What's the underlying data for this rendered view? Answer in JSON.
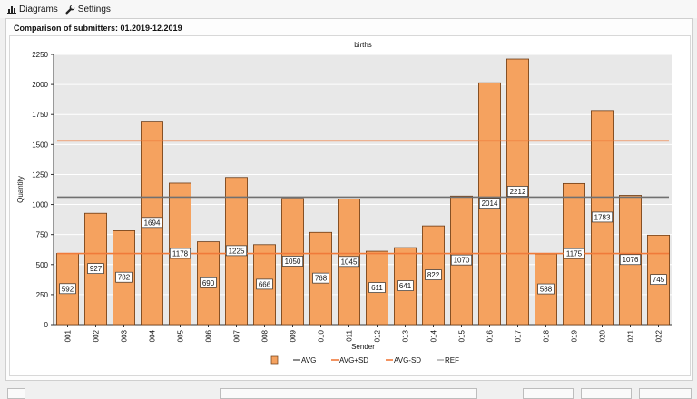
{
  "toolbar": {
    "diagrams_label": "Diagrams",
    "settings_label": "Settings"
  },
  "panel": {
    "title": "Comparison of submitters: 01.2019-12.2019"
  },
  "chart_data": {
    "type": "bar",
    "title": "births",
    "xlabel": "Sender",
    "ylabel": "Quantity",
    "ylim": [
      0,
      2250
    ],
    "yticks": [
      0,
      250,
      500,
      750,
      1000,
      1250,
      1500,
      1750,
      2000,
      2250
    ],
    "categories": [
      "001",
      "002",
      "003",
      "004",
      "005",
      "006",
      "007",
      "008",
      "009",
      "010",
      "011",
      "012",
      "013",
      "014",
      "015",
      "016",
      "017",
      "018",
      "019",
      "020",
      "021",
      "022"
    ],
    "values": [
      592,
      927,
      782,
      1694,
      1178,
      690,
      1225,
      666,
      1050,
      768,
      1045,
      611,
      641,
      822,
      1070,
      2014,
      2212,
      588,
      1175,
      1783,
      1076,
      745
    ],
    "reference_lines": [
      {
        "name": "AVG",
        "value": 1061,
        "color": "#707070"
      },
      {
        "name": "AVG+SD",
        "value": 1530,
        "color": "#f07a3a"
      },
      {
        "name": "AVG-SD",
        "value": 592,
        "color": "#f07a3a"
      },
      {
        "name": "REF",
        "value": null,
        "color": "#b0b0b0"
      }
    ],
    "legend": [
      "",
      "AVG",
      "AVG+SD",
      "AVG-SD",
      "REF"
    ],
    "legend_position": "bottom",
    "grid": true,
    "bar_color": "#f5a25f"
  }
}
